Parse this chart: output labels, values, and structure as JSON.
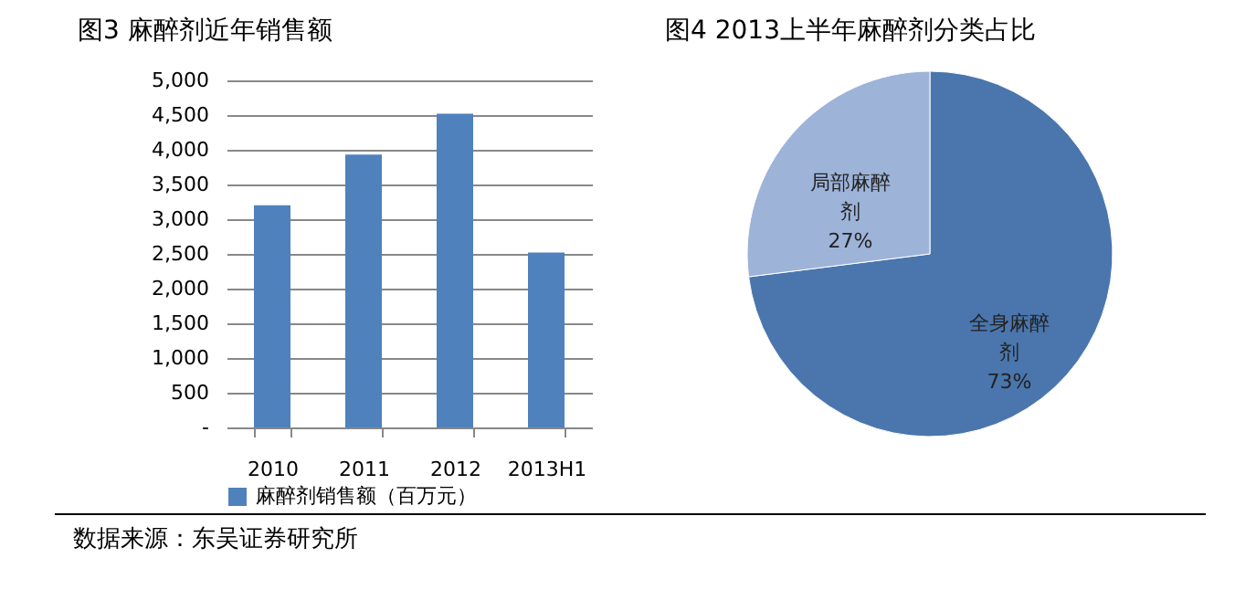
{
  "chart_data": [
    {
      "type": "bar",
      "title": "图3 麻醉剂近年销售额",
      "categories": [
        "2010",
        "2011",
        "2012",
        "2013H1"
      ],
      "series": [
        {
          "name": "麻醉剂销售额（百万元）",
          "color": "#4f81bd",
          "values": [
            3200,
            3930,
            4520,
            2520
          ]
        }
      ],
      "ylim": [
        0,
        5000
      ],
      "yticks": [
        {
          "value": 0,
          "label": "-"
        },
        {
          "value": 500,
          "label": "500"
        },
        {
          "value": 1000,
          "label": "1,000"
        },
        {
          "value": 1500,
          "label": "1,500"
        },
        {
          "value": 2000,
          "label": "2,000"
        },
        {
          "value": 2500,
          "label": "2,500"
        },
        {
          "value": 3000,
          "label": "3,000"
        },
        {
          "value": 3500,
          "label": "3,500"
        },
        {
          "value": 4000,
          "label": "4,000"
        },
        {
          "value": 4500,
          "label": "4,500"
        },
        {
          "value": 5000,
          "label": "5,000"
        }
      ],
      "grid": "y",
      "legend": "bottom",
      "annotations": [
        "数据来源：东吴证券研究所"
      ]
    },
    {
      "type": "pie",
      "title": "图4 2013上半年麻醉剂分类占比",
      "categories": [
        "全身麻醉剂",
        "局部麻醉剂"
      ],
      "values": [
        73,
        27
      ],
      "colors": [
        "#4a76ad",
        "#9db3d8"
      ],
      "value_labels": [
        "73%",
        "27%"
      ],
      "legend": false
    }
  ]
}
